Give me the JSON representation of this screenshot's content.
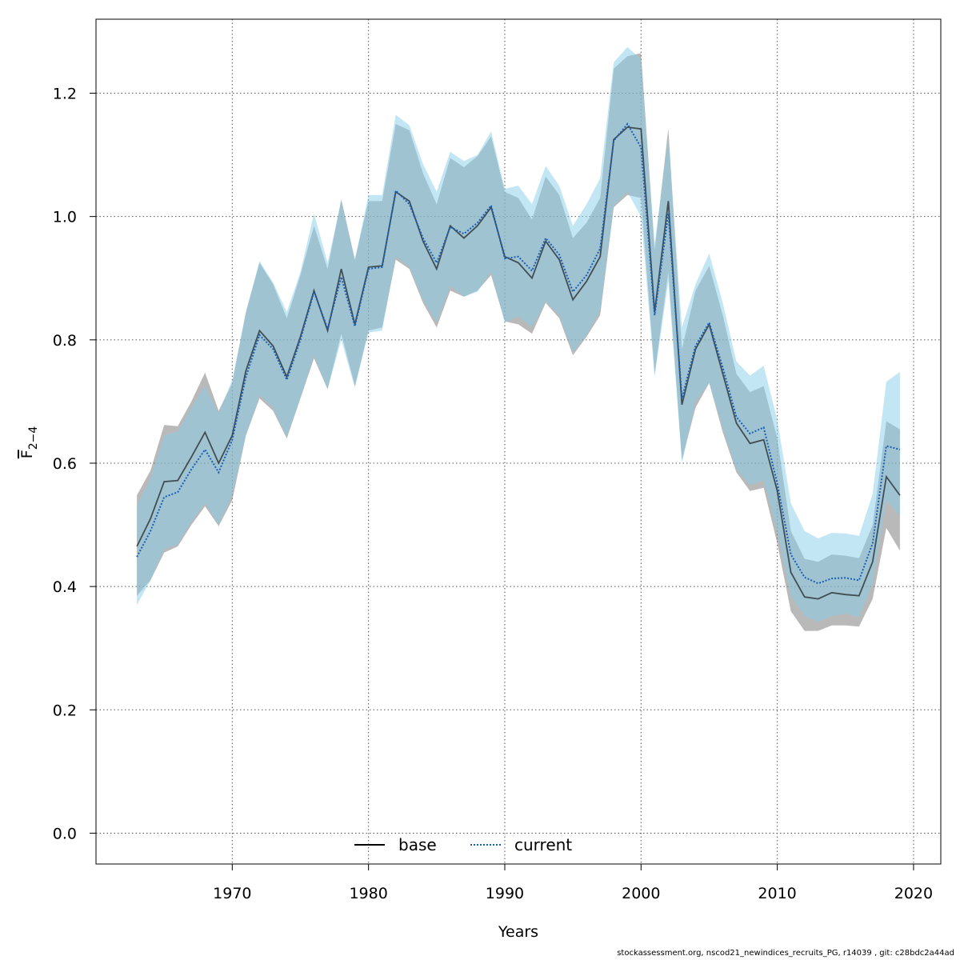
{
  "chart_data": {
    "type": "line",
    "xlabel": "Years",
    "ylabel_main": "F",
    "ylabel_sub": "2−4",
    "xlim": [
      1960,
      2022
    ],
    "ylim": [
      -0.05,
      1.32
    ],
    "x_ticks": [
      1970,
      1980,
      1990,
      2000,
      2010,
      2020
    ],
    "y_ticks": [
      0.0,
      0.2,
      0.4,
      0.6,
      0.8,
      1.0,
      1.2
    ],
    "y_tick_labels": [
      "0.0",
      "0.2",
      "0.4",
      "0.6",
      "0.8",
      "1.0",
      "1.2"
    ],
    "grid": true,
    "legend_position": "bottom",
    "x": [
      1963,
      1964,
      1965,
      1966,
      1967,
      1968,
      1969,
      1970,
      1971,
      1972,
      1973,
      1974,
      1975,
      1976,
      1977,
      1978,
      1979,
      1980,
      1981,
      1982,
      1983,
      1984,
      1985,
      1986,
      1987,
      1988,
      1989,
      1990,
      1991,
      1992,
      1993,
      1994,
      1995,
      1996,
      1997,
      1998,
      1999,
      2000,
      2001,
      2002,
      2003,
      2004,
      2005,
      2006,
      2007,
      2008,
      2009,
      2010,
      2011,
      2012,
      2013,
      2014,
      2015,
      2016,
      2017,
      2018,
      2019
    ],
    "series": [
      {
        "name": "base",
        "line_style": "solid",
        "line_color": "#000000",
        "band_color": "#808080",
        "values": [
          0.465,
          0.51,
          0.57,
          0.572,
          0.61,
          0.65,
          0.6,
          0.645,
          0.75,
          0.815,
          0.79,
          0.74,
          0.805,
          0.88,
          0.815,
          0.915,
          0.825,
          0.918,
          0.92,
          1.04,
          1.025,
          0.96,
          0.915,
          0.985,
          0.965,
          0.985,
          1.015,
          0.935,
          0.925,
          0.9,
          0.96,
          0.93,
          0.865,
          0.895,
          0.935,
          1.125,
          1.145,
          1.142,
          0.845,
          1.025,
          0.695,
          0.785,
          0.825,
          0.745,
          0.665,
          0.632,
          0.638,
          0.555,
          0.423,
          0.383,
          0.38,
          0.39,
          0.387,
          0.385,
          0.44,
          0.578,
          0.548
        ],
        "lower": [
          0.385,
          0.41,
          0.455,
          0.465,
          0.5,
          0.53,
          0.498,
          0.54,
          0.645,
          0.705,
          0.685,
          0.64,
          0.705,
          0.77,
          0.72,
          0.81,
          0.725,
          0.815,
          0.82,
          0.93,
          0.915,
          0.86,
          0.82,
          0.88,
          0.87,
          0.88,
          0.905,
          0.83,
          0.825,
          0.81,
          0.86,
          0.835,
          0.775,
          0.805,
          0.84,
          1.015,
          1.035,
          1.03,
          0.745,
          0.91,
          0.605,
          0.69,
          0.73,
          0.65,
          0.585,
          0.555,
          0.56,
          0.47,
          0.36,
          0.328,
          0.328,
          0.337,
          0.337,
          0.335,
          0.38,
          0.495,
          0.458
        ],
        "upper": [
          0.548,
          0.588,
          0.662,
          0.66,
          0.7,
          0.747,
          0.685,
          0.73,
          0.845,
          0.925,
          0.89,
          0.835,
          0.905,
          0.985,
          0.915,
          1.028,
          0.93,
          1.025,
          1.025,
          1.15,
          1.14,
          1.07,
          1.02,
          1.095,
          1.08,
          1.098,
          1.13,
          1.04,
          1.03,
          0.995,
          1.065,
          1.035,
          0.965,
          0.99,
          1.03,
          1.24,
          1.26,
          1.265,
          0.945,
          1.143,
          0.785,
          0.88,
          0.92,
          0.84,
          0.745,
          0.715,
          0.725,
          0.64,
          0.49,
          0.445,
          0.44,
          0.452,
          0.45,
          0.446,
          0.5,
          0.668,
          0.655
        ]
      },
      {
        "name": "current",
        "line_style": "dotted",
        "line_color": "#1a5fb4",
        "band_color": "#87ceeb",
        "values": [
          0.448,
          0.49,
          0.545,
          0.553,
          0.59,
          0.622,
          0.585,
          0.638,
          0.74,
          0.808,
          0.785,
          0.735,
          0.8,
          0.878,
          0.818,
          0.902,
          0.822,
          0.915,
          0.918,
          1.042,
          1.02,
          0.965,
          0.925,
          0.983,
          0.972,
          0.99,
          1.018,
          0.932,
          0.935,
          0.912,
          0.965,
          0.938,
          0.878,
          0.905,
          0.948,
          1.123,
          1.15,
          1.112,
          0.84,
          1.005,
          0.705,
          0.79,
          0.828,
          0.755,
          0.675,
          0.648,
          0.658,
          0.567,
          0.452,
          0.415,
          0.405,
          0.413,
          0.414,
          0.41,
          0.47,
          0.628,
          0.622
        ],
        "lower": [
          0.37,
          0.41,
          0.46,
          0.468,
          0.505,
          0.535,
          0.5,
          0.548,
          0.645,
          0.71,
          0.69,
          0.642,
          0.705,
          0.775,
          0.72,
          0.8,
          0.722,
          0.812,
          0.815,
          0.935,
          0.918,
          0.865,
          0.828,
          0.888,
          0.87,
          0.878,
          0.91,
          0.828,
          0.838,
          0.82,
          0.862,
          0.84,
          0.78,
          0.808,
          0.848,
          1.018,
          1.04,
          1.0,
          0.74,
          0.895,
          0.6,
          0.7,
          0.73,
          0.658,
          0.59,
          0.565,
          0.572,
          0.488,
          0.385,
          0.352,
          0.343,
          0.352,
          0.356,
          0.35,
          0.405,
          0.54,
          0.515
        ],
        "upper": [
          0.532,
          0.575,
          0.645,
          0.652,
          0.69,
          0.725,
          0.68,
          0.735,
          0.845,
          0.928,
          0.893,
          0.845,
          0.91,
          1.005,
          0.925,
          1.025,
          0.93,
          1.035,
          1.035,
          1.165,
          1.148,
          1.085,
          1.04,
          1.105,
          1.09,
          1.1,
          1.138,
          1.045,
          1.05,
          1.02,
          1.082,
          1.05,
          0.985,
          1.02,
          1.062,
          1.25,
          1.275,
          1.255,
          0.955,
          1.13,
          0.82,
          0.89,
          0.94,
          0.86,
          0.765,
          0.742,
          0.758,
          0.67,
          0.535,
          0.49,
          0.478,
          0.487,
          0.486,
          0.482,
          0.55,
          0.732,
          0.748
        ]
      }
    ]
  },
  "footer": "stockassessment.org, nscod21_newindices_recruits_PG, r14039 , git: c28bdc2a44ad"
}
